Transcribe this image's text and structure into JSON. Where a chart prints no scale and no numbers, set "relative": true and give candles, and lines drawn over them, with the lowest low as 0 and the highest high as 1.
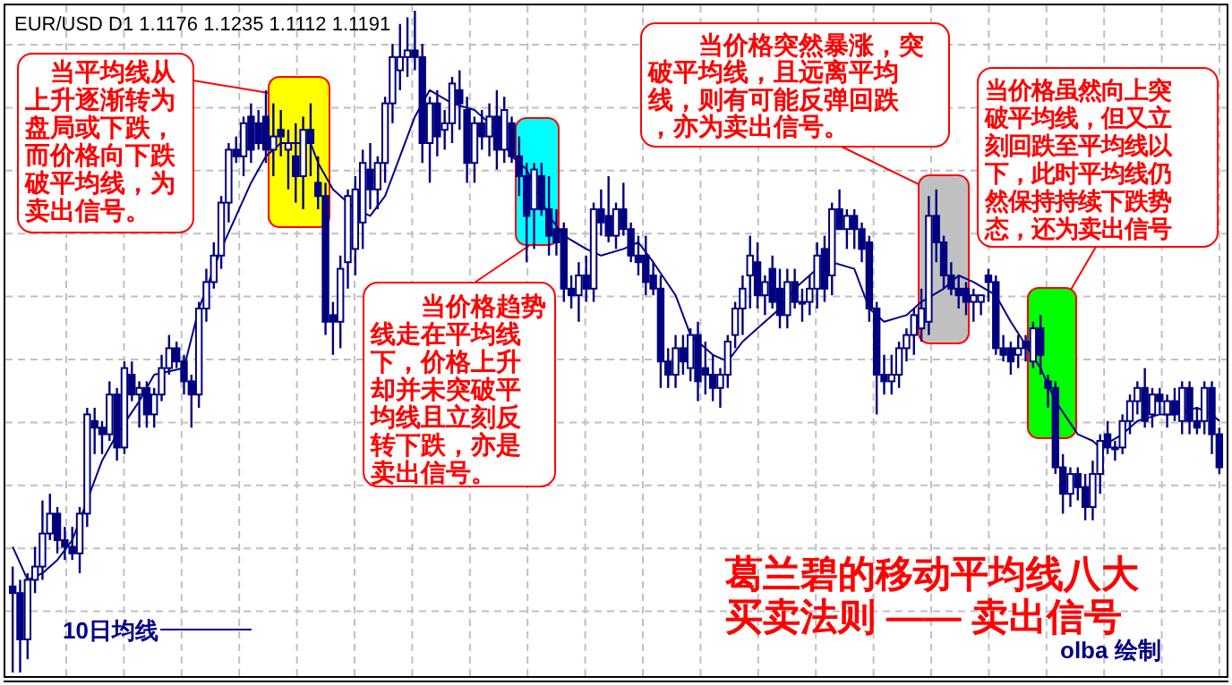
{
  "chart_data": {
    "type": "candlestick",
    "title": "EUR/USD D1  1.1176  1.1235  1.1112  1.1191",
    "relative": true,
    "grid": true,
    "legend": "bottom left",
    "annotations": [
      "当平均线从上升逐渐转为盘局或下跌，而价格向下跌破平均线，为卖出信号。",
      "当价格趋势线走在平均线下，价格上升却并未突破平均线且立刻反转下跌，亦是卖出信号。",
      "当价格突然暴涨，突破平均线，且远离平均线，则有可能反弹回跌，亦为卖出信号。",
      "当价格虽然向上突破平均线，但又立刻回跌至平均线以下，此时平均线仍然保持持续下跌势态，还为卖出信号",
      "葛兰碧的移动平均线八大买卖法则 —— 卖出信号",
      "olba 绘制"
    ],
    "categories": [
      null,
      null,
      null,
      null,
      null,
      null,
      null,
      null,
      null,
      null,
      null,
      null,
      null,
      null,
      null,
      null,
      null,
      null,
      null,
      null,
      null,
      null,
      null,
      null,
      null,
      null,
      null,
      null,
      null,
      null,
      null,
      null,
      null,
      null,
      null,
      null,
      null,
      null,
      null,
      null,
      null,
      null,
      null,
      null,
      null,
      null,
      null,
      null,
      null,
      null,
      null,
      null,
      null,
      null,
      null,
      null,
      null,
      null,
      null,
      null,
      null,
      null,
      null,
      null,
      null,
      null,
      null,
      null,
      null,
      null,
      null,
      null,
      null,
      null,
      null,
      null,
      null,
      null,
      null,
      null,
      null,
      null,
      null,
      null,
      null,
      null,
      null,
      null,
      null,
      null,
      null,
      null,
      null,
      null,
      null,
      null,
      null,
      null,
      null,
      null,
      null,
      null,
      null,
      null,
      null,
      null,
      null,
      null,
      null,
      null,
      null,
      null,
      null,
      null,
      null,
      null,
      null,
      null,
      null,
      null,
      null,
      null,
      null,
      null,
      null,
      null,
      null,
      null,
      null,
      null,
      null,
      null,
      null,
      null,
      null,
      null,
      null,
      null,
      null,
      null,
      null,
      null,
      null,
      null,
      null,
      null,
      null,
      null,
      null,
      null,
      null,
      null,
      null,
      null,
      null,
      null,
      null,
      null,
      null,
      null,
      null,
      null,
      null
    ],
    "ohlc": [
      [
        0.13,
        0.16,
        0.0,
        0.12
      ],
      [
        0.12,
        0.14,
        0.0,
        0.05
      ],
      [
        0.05,
        0.15,
        0.02,
        0.14
      ],
      [
        0.14,
        0.19,
        0.12,
        0.16
      ],
      [
        0.16,
        0.26,
        0.14,
        0.21
      ],
      [
        0.21,
        0.27,
        0.2,
        0.24
      ],
      [
        0.24,
        0.25,
        0.18,
        0.2
      ],
      [
        0.2,
        0.22,
        0.17,
        0.19
      ],
      [
        0.19,
        0.22,
        0.17,
        0.18
      ],
      [
        0.18,
        0.25,
        0.15,
        0.24
      ],
      [
        0.24,
        0.4,
        0.22,
        0.39
      ],
      [
        0.38,
        0.4,
        0.33,
        0.37
      ],
      [
        0.37,
        0.38,
        0.33,
        0.36
      ],
      [
        0.36,
        0.44,
        0.35,
        0.42
      ],
      [
        0.42,
        0.43,
        0.32,
        0.34
      ],
      [
        0.34,
        0.47,
        0.33,
        0.46
      ],
      [
        0.45,
        0.47,
        0.41,
        0.42
      ],
      [
        0.42,
        0.44,
        0.37,
        0.43
      ],
      [
        0.43,
        0.44,
        0.37,
        0.39
      ],
      [
        0.39,
        0.43,
        0.37,
        0.42
      ],
      [
        0.42,
        0.48,
        0.41,
        0.46
      ],
      [
        0.46,
        0.51,
        0.45,
        0.49
      ],
      [
        0.49,
        0.5,
        0.46,
        0.47
      ],
      [
        0.47,
        0.48,
        0.42,
        0.44
      ],
      [
        0.44,
        0.45,
        0.37,
        0.42
      ],
      [
        0.42,
        0.56,
        0.4,
        0.55
      ],
      [
        0.55,
        0.61,
        0.53,
        0.59
      ],
      [
        0.59,
        0.65,
        0.58,
        0.63
      ],
      [
        0.63,
        0.72,
        0.61,
        0.71
      ],
      [
        0.71,
        0.8,
        0.68,
        0.79
      ],
      [
        0.79,
        0.81,
        0.77,
        0.78
      ],
      [
        0.78,
        0.84,
        0.75,
        0.83
      ],
      [
        0.84,
        0.86,
        0.77,
        0.79
      ],
      [
        0.83,
        0.85,
        0.79,
        0.8
      ],
      [
        0.84,
        0.88,
        0.77,
        0.79
      ],
      [
        0.79,
        0.86,
        0.75,
        0.81
      ],
      [
        0.82,
        0.85,
        0.78,
        0.81
      ],
      [
        0.79,
        0.82,
        0.73,
        0.8
      ],
      [
        0.78,
        0.83,
        0.71,
        0.75
      ],
      [
        0.75,
        0.84,
        0.7,
        0.82
      ],
      [
        0.82,
        0.86,
        0.75,
        0.8
      ],
      [
        0.74,
        0.78,
        0.7,
        0.72
      ],
      [
        0.72,
        0.74,
        0.51,
        0.53
      ],
      [
        0.54,
        0.56,
        0.48,
        0.53
      ],
      [
        0.53,
        0.63,
        0.49,
        0.61
      ],
      [
        0.62,
        0.73,
        0.58,
        0.72
      ],
      [
        0.64,
        0.75,
        0.6,
        0.73
      ],
      [
        0.68,
        0.79,
        0.64,
        0.77
      ],
      [
        0.76,
        0.8,
        0.7,
        0.73
      ],
      [
        0.73,
        0.78,
        0.7,
        0.77
      ],
      [
        0.77,
        0.87,
        0.74,
        0.86
      ],
      [
        0.86,
        0.95,
        0.83,
        0.93
      ],
      [
        0.91,
        0.98,
        0.88,
        0.93
      ],
      [
        0.93,
        0.99,
        0.9,
        0.94
      ],
      [
        0.94,
        1.0,
        0.91,
        0.93
      ],
      [
        0.93,
        0.95,
        0.77,
        0.8
      ],
      [
        0.8,
        0.87,
        0.74,
        0.86
      ],
      [
        0.86,
        0.88,
        0.78,
        0.81
      ],
      [
        0.82,
        0.85,
        0.79,
        0.83
      ],
      [
        0.83,
        0.9,
        0.8,
        0.89
      ],
      [
        0.88,
        0.91,
        0.82,
        0.86
      ],
      [
        0.85,
        0.87,
        0.74,
        0.77
      ],
      [
        0.77,
        0.84,
        0.74,
        0.83
      ],
      [
        0.83,
        0.85,
        0.79,
        0.81
      ],
      [
        0.81,
        0.86,
        0.78,
        0.84
      ],
      [
        0.84,
        0.88,
        0.76,
        0.79
      ],
      [
        0.79,
        0.87,
        0.77,
        0.85
      ],
      [
        0.83,
        0.84,
        0.77,
        0.78
      ],
      [
        0.78,
        0.81,
        0.72,
        0.75
      ],
      [
        0.75,
        0.77,
        0.62,
        0.69
      ],
      [
        0.7,
        0.77,
        0.64,
        0.76
      ],
      [
        0.75,
        0.77,
        0.69,
        0.7
      ],
      [
        0.7,
        0.75,
        0.63,
        0.66
      ],
      [
        0.67,
        0.7,
        0.63,
        0.65
      ],
      [
        0.67,
        0.68,
        0.56,
        0.58
      ],
      [
        0.58,
        0.6,
        0.55,
        0.57
      ],
      [
        0.57,
        0.62,
        0.53,
        0.6
      ],
      [
        0.6,
        0.63,
        0.56,
        0.58
      ],
      [
        0.58,
        0.71,
        0.56,
        0.7
      ],
      [
        0.7,
        0.73,
        0.66,
        0.68
      ],
      [
        0.69,
        0.75,
        0.65,
        0.66
      ],
      [
        0.66,
        0.71,
        0.64,
        0.7
      ],
      [
        0.7,
        0.74,
        0.66,
        0.67
      ],
      [
        0.67,
        0.68,
        0.62,
        0.63
      ],
      [
        0.63,
        0.66,
        0.6,
        0.62
      ],
      [
        0.63,
        0.66,
        0.57,
        0.59
      ],
      [
        0.6,
        0.62,
        0.57,
        0.58
      ],
      [
        0.58,
        0.6,
        0.43,
        0.47
      ],
      [
        0.47,
        0.49,
        0.43,
        0.45
      ],
      [
        0.45,
        0.51,
        0.43,
        0.49
      ],
      [
        0.49,
        0.51,
        0.45,
        0.47
      ],
      [
        0.46,
        0.52,
        0.44,
        0.51
      ],
      [
        0.51,
        0.53,
        0.41,
        0.44
      ],
      [
        0.46,
        0.5,
        0.42,
        0.45
      ],
      [
        0.45,
        0.48,
        0.41,
        0.43
      ],
      [
        0.43,
        0.46,
        0.4,
        0.45
      ],
      [
        0.45,
        0.51,
        0.43,
        0.5
      ],
      [
        0.51,
        0.56,
        0.49,
        0.55
      ],
      [
        0.55,
        0.6,
        0.51,
        0.58
      ],
      [
        0.6,
        0.66,
        0.55,
        0.63
      ],
      [
        0.62,
        0.65,
        0.55,
        0.57
      ],
      [
        0.57,
        0.6,
        0.54,
        0.59
      ],
      [
        0.61,
        0.63,
        0.55,
        0.56
      ],
      [
        0.58,
        0.61,
        0.52,
        0.54
      ],
      [
        0.54,
        0.61,
        0.52,
        0.59
      ],
      [
        0.59,
        0.61,
        0.55,
        0.56
      ],
      [
        0.56,
        0.58,
        0.53,
        0.56
      ],
      [
        0.56,
        0.6,
        0.54,
        0.58
      ],
      [
        0.58,
        0.65,
        0.55,
        0.63
      ],
      [
        0.64,
        0.66,
        0.56,
        0.58
      ],
      [
        0.6,
        0.71,
        0.57,
        0.7
      ],
      [
        0.7,
        0.73,
        0.67,
        0.67
      ],
      [
        0.67,
        0.7,
        0.64,
        0.69
      ],
      [
        0.69,
        0.7,
        0.64,
        0.67
      ],
      [
        0.67,
        0.68,
        0.62,
        0.64
      ],
      [
        0.65,
        0.66,
        0.53,
        0.55
      ],
      [
        0.55,
        0.56,
        0.39,
        0.45
      ],
      [
        0.45,
        0.48,
        0.42,
        0.44
      ],
      [
        0.44,
        0.48,
        0.42,
        0.45
      ],
      [
        0.45,
        0.5,
        0.43,
        0.49
      ],
      [
        0.49,
        0.52,
        0.47,
        0.51
      ],
      [
        0.51,
        0.55,
        0.48,
        0.54
      ],
      [
        0.52,
        0.58,
        0.5,
        0.55
      ],
      [
        0.53,
        0.72,
        0.51,
        0.69
      ],
      [
        0.69,
        0.73,
        0.62,
        0.65
      ],
      [
        0.65,
        0.66,
        0.58,
        0.6
      ],
      [
        0.6,
        0.62,
        0.57,
        0.58
      ],
      [
        0.58,
        0.6,
        0.55,
        0.57
      ],
      [
        0.58,
        0.59,
        0.54,
        0.56
      ],
      [
        0.56,
        0.58,
        0.53,
        0.57
      ],
      [
        0.56,
        0.57,
        0.54,
        0.57
      ],
      [
        0.6,
        0.61,
        0.56,
        0.59
      ],
      [
        0.59,
        0.6,
        0.48,
        0.49
      ],
      [
        0.49,
        0.51,
        0.47,
        0.48
      ],
      [
        0.49,
        0.5,
        0.45,
        0.47
      ],
      [
        0.48,
        0.51,
        0.46,
        0.49
      ],
      [
        0.5,
        0.51,
        0.47,
        0.49
      ],
      [
        0.47,
        0.53,
        0.46,
        0.52
      ],
      [
        0.52,
        0.54,
        0.45,
        0.48
      ],
      [
        0.44,
        0.45,
        0.4,
        0.43
      ],
      [
        0.43,
        0.44,
        0.3,
        0.31
      ],
      [
        0.31,
        0.33,
        0.24,
        0.27
      ],
      [
        0.27,
        0.31,
        0.25,
        0.3
      ],
      [
        0.3,
        0.31,
        0.26,
        0.28
      ],
      [
        0.28,
        0.3,
        0.23,
        0.25
      ],
      [
        0.25,
        0.32,
        0.23,
        0.3
      ],
      [
        0.3,
        0.36,
        0.27,
        0.35
      ],
      [
        0.36,
        0.38,
        0.33,
        0.34
      ],
      [
        0.34,
        0.35,
        0.32,
        0.34
      ],
      [
        0.34,
        0.39,
        0.33,
        0.38
      ],
      [
        0.38,
        0.42,
        0.36,
        0.41
      ],
      [
        0.41,
        0.44,
        0.39,
        0.43
      ],
      [
        0.43,
        0.46,
        0.37,
        0.38
      ],
      [
        0.39,
        0.43,
        0.37,
        0.42
      ],
      [
        0.42,
        0.43,
        0.39,
        0.41
      ],
      [
        0.39,
        0.42,
        0.37,
        0.41
      ],
      [
        0.41,
        0.43,
        0.38,
        0.39
      ],
      [
        0.38,
        0.44,
        0.36,
        0.43
      ],
      [
        0.43,
        0.44,
        0.36,
        0.38
      ],
      [
        0.38,
        0.4,
        0.36,
        0.37
      ],
      [
        0.38,
        0.44,
        0.36,
        0.43
      ],
      [
        0.43,
        0.44,
        0.33,
        0.36
      ],
      [
        0.36,
        0.37,
        0.3,
        0.31
      ]
    ],
    "color": "#000080",
    "series": [
      {
        "name": "10日均线",
        "type": "line",
        "color": "#00008b",
        "values": [
          0.19,
          null,
          0.14,
          null,
          0.15,
          null,
          0.17,
          null,
          0.2,
          null,
          0.26,
          null,
          0.32,
          null,
          0.36,
          null,
          null,
          0.41,
          null,
          0.45,
          null,
          null,
          null,
          0.46,
          null,
          0.55,
          null,
          null,
          0.64,
          null,
          0.69,
          null,
          0.74,
          null,
          0.78,
          null,
          0.8,
          null,
          0.8,
          null,
          0.8,
          0.77,
          null,
          0.73,
          null,
          null,
          0.7,
          null,
          0.69,
          null,
          0.72,
          null,
          0.78,
          null,
          0.84,
          null,
          0.88,
          null,
          null,
          0.86,
          null,
          null,
          0.85,
          null,
          null,
          0.82,
          null,
          0.78,
          null,
          0.76,
          null,
          null,
          0.69,
          null,
          0.66,
          null,
          null,
          0.64,
          null,
          0.63,
          null,
          null,
          0.64,
          null,
          0.65,
          null,
          0.62,
          null,
          null,
          0.57,
          null,
          0.51,
          null,
          null,
          0.48,
          null,
          0.47,
          null,
          0.5,
          null,
          null,
          0.53,
          null,
          0.55,
          null,
          0.58,
          null,
          null,
          0.61,
          null,
          0.62,
          null,
          null,
          0.61,
          null,
          0.55,
          null,
          0.53,
          null,
          null,
          0.54,
          null,
          0.56,
          null,
          null,
          0.58,
          null,
          0.6,
          null,
          0.59,
          null,
          null,
          0.57,
          null,
          0.53,
          null,
          null,
          null,
          0.46,
          null,
          0.41,
          null,
          null,
          0.36,
          null,
          0.35,
          0.34,
          null,
          null,
          0.36,
          null,
          0.38,
          null,
          null,
          0.39,
          null,
          0.39,
          null,
          null,
          0.4,
          null,
          0.39,
          0.38
        ]
      }
    ]
  }
}
